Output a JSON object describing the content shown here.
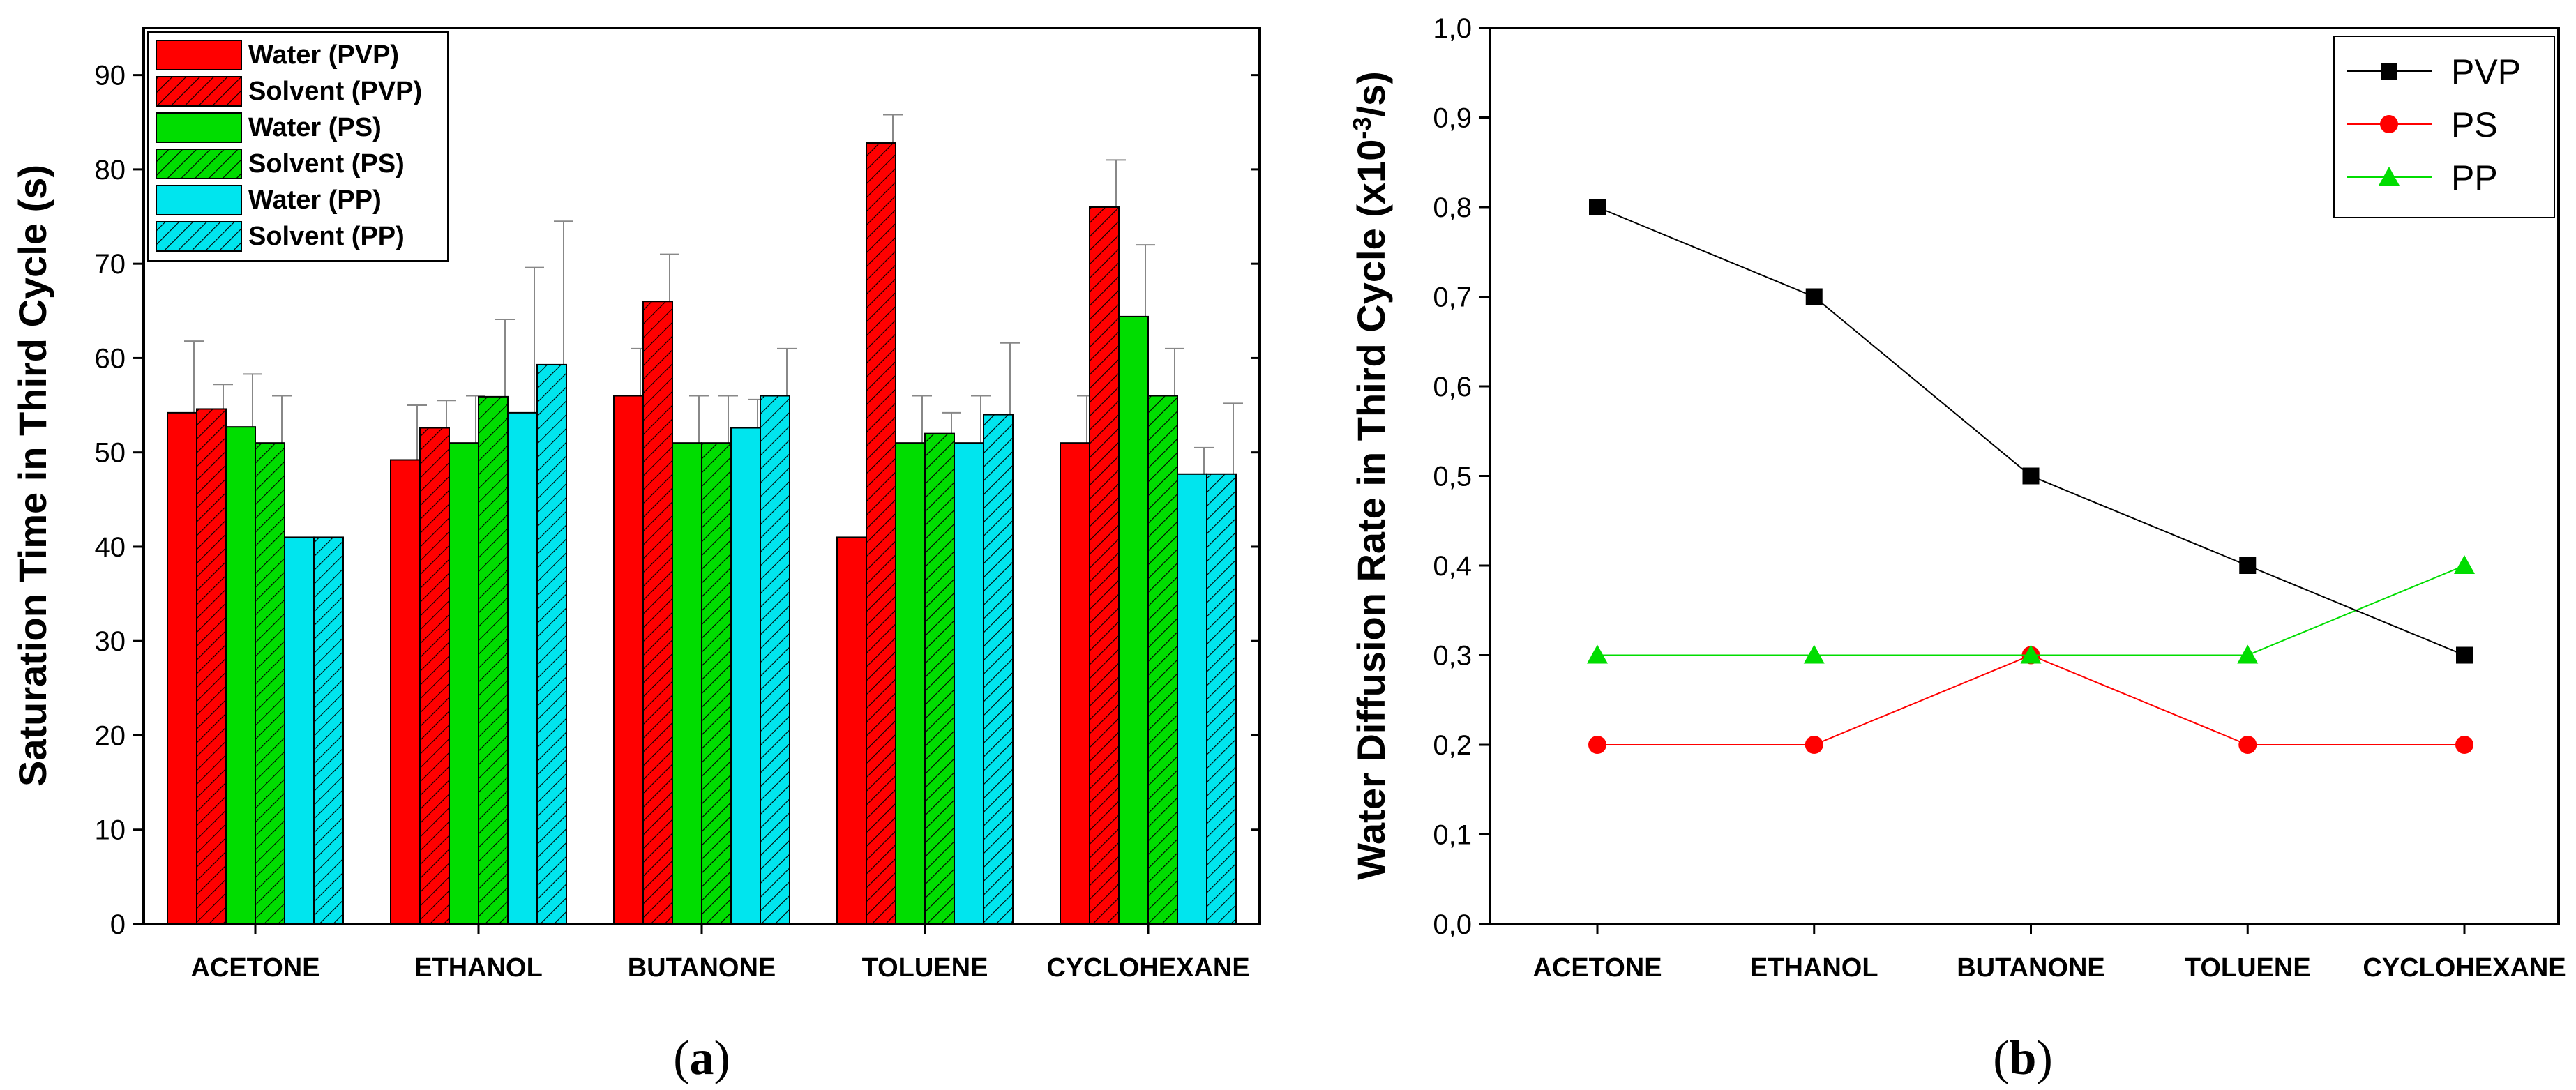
{
  "chart_data": [
    {
      "type": "bar",
      "panel_label": "a",
      "categories": [
        "ACETONE",
        "ETHANOL",
        "BUTANONE",
        "TOLUENE",
        "CYCLOHEXANE"
      ],
      "ylabel": "Saturation Time in Third Cycle (s)",
      "xlabel": "",
      "ylim": [
        0,
        95
      ],
      "yticks": [
        0,
        10,
        20,
        30,
        40,
        50,
        60,
        70,
        80,
        90
      ],
      "legend_position": "top-left",
      "series": [
        {
          "name": "Water (PVP)",
          "color": "#ff0000",
          "hatched": false,
          "values": [
            54.2,
            49.2,
            56.0,
            41.0,
            51.0
          ],
          "errors": [
            7.6,
            5.8,
            5.0,
            0,
            5.0
          ]
        },
        {
          "name": "Solvent (PVP)",
          "color": "#ff0000",
          "hatched": true,
          "values": [
            54.6,
            52.6,
            66.0,
            82.8,
            76.0
          ],
          "errors": [
            2.6,
            2.9,
            5.0,
            3.0,
            5.0
          ]
        },
        {
          "name": "Water (PS)",
          "color": "#00dd00",
          "hatched": false,
          "values": [
            52.7,
            51.0,
            51.0,
            51.0,
            64.4
          ],
          "errors": [
            5.6,
            5.0,
            5.0,
            5.0,
            7.6
          ]
        },
        {
          "name": "Solvent (PS)",
          "color": "#00dd00",
          "hatched": true,
          "values": [
            51.0,
            55.9,
            51.0,
            52.0,
            56.0
          ],
          "errors": [
            5.0,
            8.2,
            5.0,
            2.2,
            5.0
          ]
        },
        {
          "name": "Water (PP)",
          "color": "#00e5ee",
          "hatched": false,
          "values": [
            41.0,
            54.2,
            52.6,
            51.0,
            47.7
          ],
          "errors": [
            0,
            15.4,
            3.0,
            5.0,
            2.8
          ]
        },
        {
          "name": "Solvent (PP)",
          "color": "#00e5ee",
          "hatched": true,
          "values": [
            41.0,
            59.3,
            56.0,
            54.0,
            47.7
          ],
          "errors": [
            0,
            15.2,
            5.0,
            7.6,
            7.5
          ]
        }
      ]
    },
    {
      "type": "line",
      "panel_label": "b",
      "categories": [
        "ACETONE",
        "ETHANOL",
        "BUTANONE",
        "TOLUENE",
        "CYCLOHEXANE"
      ],
      "ylabel_main": "Water Diffusion Rate in Third Cycle (x10",
      "ylabel_sup": "-3",
      "ylabel_tail": "/s)",
      "xlabel": "",
      "ylim": [
        0,
        1.0
      ],
      "yticks": [
        "0,0",
        "0,1",
        "0,2",
        "0,3",
        "0,4",
        "0,5",
        "0,6",
        "0,7",
        "0,8",
        "0,9",
        "1,0"
      ],
      "legend_position": "top-right",
      "series": [
        {
          "name": "PVP",
          "color": "#000000",
          "marker": "square",
          "values": [
            0.8,
            0.7,
            0.5,
            0.4,
            0.3
          ]
        },
        {
          "name": "PS",
          "color": "#ff0000",
          "marker": "circle",
          "values": [
            0.2,
            0.2,
            0.3,
            0.2,
            0.2
          ]
        },
        {
          "name": "PP",
          "color": "#00dd00",
          "marker": "triangle",
          "values": [
            0.3,
            0.3,
            0.3,
            0.3,
            0.4
          ]
        }
      ]
    }
  ],
  "captions": {
    "a": {
      "open": "(",
      "letter": "a",
      "close": ")"
    },
    "b": {
      "open": "(",
      "letter": "b",
      "close": ")"
    }
  }
}
